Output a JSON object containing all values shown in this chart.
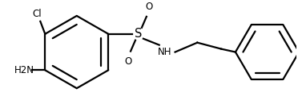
{
  "bg_color": "#ffffff",
  "line_color": "#000000",
  "text_color": "#000000",
  "line_width": 1.6,
  "font_size": 8.5,
  "figsize": [
    3.72,
    1.31
  ],
  "dpi": 100,
  "cl_label": "Cl",
  "nh2_label": "H2N",
  "s_label": "S",
  "nh_label": "NH",
  "o1_label": "O",
  "o2_label": "O"
}
